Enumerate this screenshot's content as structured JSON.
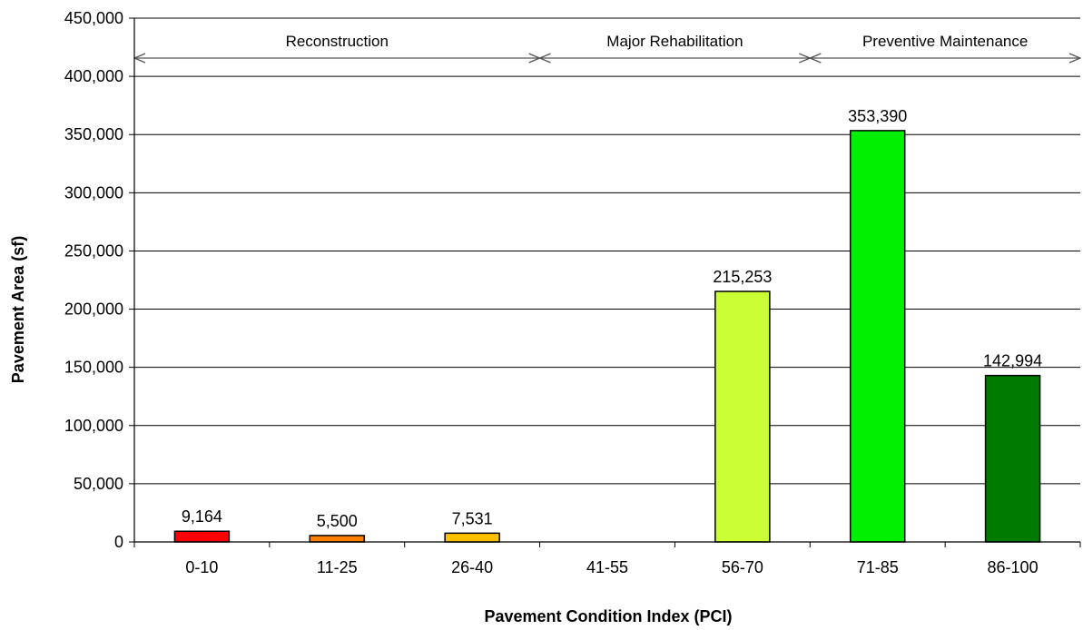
{
  "chart_data": {
    "type": "bar",
    "categories": [
      "0-10",
      "11-25",
      "26-40",
      "41-55",
      "56-70",
      "71-85",
      "86-100"
    ],
    "values": [
      9164,
      5500,
      7531,
      0,
      215253,
      353390,
      142994
    ],
    "data_labels": [
      "9,164",
      "5,500",
      "7,531",
      "",
      "215,253",
      "353,390",
      "142,994"
    ],
    "colors": [
      "#ff0000",
      "#ff7f00",
      "#ffc000",
      "#ffffff",
      "#ccff33",
      "#00ee00",
      "#007a00"
    ],
    "xlabel": "Pavement Condition Index (PCI)",
    "ylabel": "Pavement Area (sf)",
    "ylim": [
      0,
      450000
    ],
    "yticks": [
      0,
      50000,
      100000,
      150000,
      200000,
      250000,
      300000,
      350000,
      400000,
      450000
    ],
    "ytick_labels": [
      "0",
      "50,000",
      "100,000",
      "150,000",
      "200,000",
      "250,000",
      "300,000",
      "350,000",
      "400,000",
      "450,000"
    ],
    "grid": true,
    "zones": [
      {
        "label": "Reconstruction",
        "from_category": 0,
        "to_category": 2
      },
      {
        "label": "Major Rehabilitation",
        "from_category": 3,
        "to_category": 4
      },
      {
        "label": "Preventive Maintenance",
        "from_category": 5,
        "to_category": 6
      }
    ]
  }
}
